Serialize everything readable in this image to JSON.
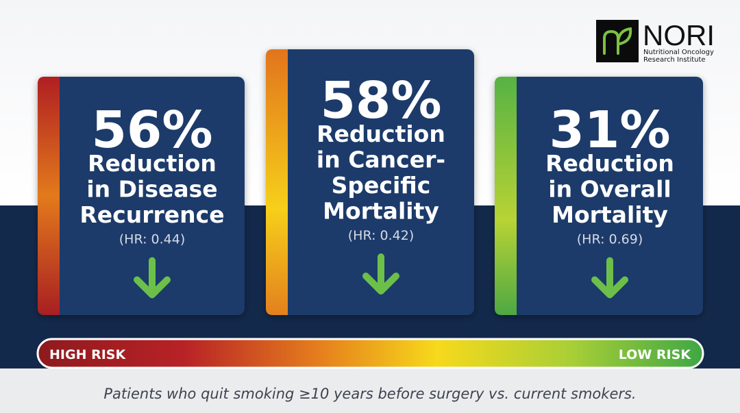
{
  "logo": {
    "name": "NORI",
    "tagline_lines": [
      "Nutritional Oncology",
      "Research Institute"
    ]
  },
  "cards": [
    {
      "percent": "56%",
      "label_lines": [
        "Reduction",
        "in Disease",
        "Recurrence"
      ],
      "hazard_ratio": "(HR: 0.44)"
    },
    {
      "percent": "58%",
      "label_lines": [
        "Reduction",
        "in Cancer-",
        "Specific",
        "Mortality"
      ],
      "hazard_ratio": "(HR: 0.42)"
    },
    {
      "percent": "31%",
      "label_lines": [
        "Reduction",
        "in Overall",
        "Mortality"
      ],
      "hazard_ratio": "(HR: 0.69)"
    }
  ],
  "risk_scale": {
    "high_label": "HIGH RISK",
    "low_label": "LOW RISK"
  },
  "footnote": "Patients who quit smoking ≥10 years before surgery vs. current smokers."
}
